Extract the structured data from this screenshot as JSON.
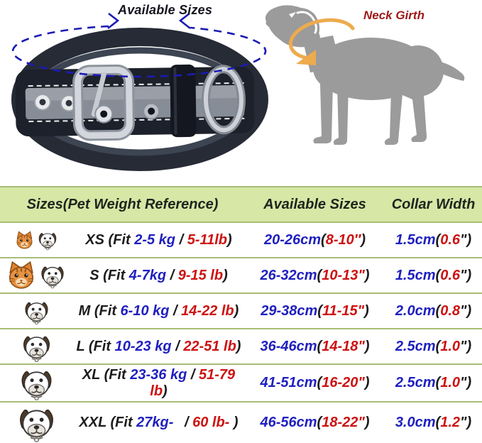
{
  "hero": {
    "available_sizes_label": "Available Sizes",
    "neck_girth_label": "Neck Girth",
    "colors": {
      "dashed_arrow": "#1b1bb4",
      "neck_arrow": "#edab4d",
      "neck_girth_text": "#9e1a1a",
      "dog_gray": "#9b9b9b"
    }
  },
  "table": {
    "headers": [
      "Sizes(Pet Weight Reference)",
      "Available Sizes",
      "Collar Width"
    ],
    "colors": {
      "header_bg": "#d6e7a6",
      "line": "#a9bc78",
      "blue": "#1f1fbf",
      "red": "#cd1111",
      "dark": "#1c1c1c"
    },
    "rows": [
      {
        "size_name": "XS",
        "icons": [
          {
            "type": "cat",
            "size": 27
          },
          {
            "type": "dog",
            "size": 30
          }
        ],
        "size_parts": [
          {
            "t": "XS (Fit ",
            "c": "dark"
          },
          {
            "t": "2-5 kg",
            "c": "blue"
          },
          {
            "t": " / ",
            "c": "dark"
          },
          {
            "t": "5-11lb",
            "c": "red"
          },
          {
            "t": ")",
            "c": "dark"
          }
        ],
        "avail_parts": [
          {
            "t": "20-26cm",
            "c": "blue"
          },
          {
            "t": "(",
            "c": "dark"
          },
          {
            "t": "8-10″",
            "c": "red"
          },
          {
            "t": ")",
            "c": "dark"
          }
        ],
        "width_parts": [
          {
            "t": "1.5cm",
            "c": "blue"
          },
          {
            "t": "(",
            "c": "dark"
          },
          {
            "t": "0.6",
            "c": "red"
          },
          {
            "t": "\")",
            "c": "dark"
          }
        ]
      },
      {
        "size_name": "S",
        "icons": [
          {
            "type": "cat",
            "size": 42
          },
          {
            "type": "dog",
            "size": 38
          }
        ],
        "size_parts": [
          {
            "t": "S (Fit ",
            "c": "dark"
          },
          {
            "t": "4-7kg",
            "c": "blue"
          },
          {
            "t": " / ",
            "c": "dark"
          },
          {
            "t": "9-15 lb",
            "c": "red"
          },
          {
            "t": ")",
            "c": "dark"
          }
        ],
        "avail_parts": [
          {
            "t": "26-32cm",
            "c": "blue"
          },
          {
            "t": "(",
            "c": "dark"
          },
          {
            "t": "10-13\"",
            "c": "red"
          },
          {
            "t": ")",
            "c": "dark"
          }
        ],
        "width_parts": [
          {
            "t": "1.5cm",
            "c": "blue"
          },
          {
            "t": "(",
            "c": "dark"
          },
          {
            "t": "0.6",
            "c": "red"
          },
          {
            "t": "\")",
            "c": "dark"
          }
        ]
      },
      {
        "size_name": "M",
        "icons": [
          {
            "type": "dog",
            "size": 39
          }
        ],
        "size_parts": [
          {
            "t": "M (Fit ",
            "c": "dark"
          },
          {
            "t": "6-10 kg",
            "c": "blue"
          },
          {
            "t": " / ",
            "c": "dark"
          },
          {
            "t": "14-22 lb",
            "c": "red"
          },
          {
            "t": ")",
            "c": "dark"
          }
        ],
        "avail_parts": [
          {
            "t": "29-38cm",
            "c": "blue"
          },
          {
            "t": "(",
            "c": "dark"
          },
          {
            "t": "11-15\"",
            "c": "red"
          },
          {
            "t": ")",
            "c": "dark"
          }
        ],
        "width_parts": [
          {
            "t": "2.0cm",
            "c": "blue"
          },
          {
            "t": "(",
            "c": "dark"
          },
          {
            "t": "0.8",
            "c": "red"
          },
          {
            "t": "\")",
            "c": "dark"
          }
        ]
      },
      {
        "size_name": "L",
        "icons": [
          {
            "type": "dog",
            "size": 45
          }
        ],
        "size_parts": [
          {
            "t": "L (Fit ",
            "c": "dark"
          },
          {
            "t": "10-23 kg",
            "c": "blue"
          },
          {
            "t": " / ",
            "c": "dark"
          },
          {
            "t": "22-51 lb",
            "c": "red"
          },
          {
            "t": ")",
            "c": "dark"
          }
        ],
        "avail_parts": [
          {
            "t": "36-46cm",
            "c": "blue"
          },
          {
            "t": "(",
            "c": "dark"
          },
          {
            "t": "14-18\"",
            "c": "red"
          },
          {
            "t": ")",
            "c": "dark"
          }
        ],
        "width_parts": [
          {
            "t": "2.5cm",
            "c": "blue"
          },
          {
            "t": "(",
            "c": "dark"
          },
          {
            "t": "1.0",
            "c": "red"
          },
          {
            "t": "\")",
            "c": "dark"
          }
        ]
      },
      {
        "size_name": "XL",
        "icons": [
          {
            "type": "dog",
            "size": 51
          }
        ],
        "size_parts": [
          {
            "t": "XL (Fit ",
            "c": "dark"
          },
          {
            "t": "23-36 kg",
            "c": "blue"
          },
          {
            "t": " / ",
            "c": "dark"
          },
          {
            "t": "51-79 lb",
            "c": "red"
          },
          {
            "t": ")",
            "c": "dark"
          }
        ],
        "avail_parts": [
          {
            "t": "41-51cm",
            "c": "blue"
          },
          {
            "t": "(",
            "c": "dark"
          },
          {
            "t": "16-20\"",
            "c": "red"
          },
          {
            "t": ")",
            "c": "dark"
          }
        ],
        "width_parts": [
          {
            "t": "2.5cm",
            "c": "blue"
          },
          {
            "t": "(",
            "c": "dark"
          },
          {
            "t": "1.0",
            "c": "red"
          },
          {
            "t": "\")",
            "c": "dark"
          }
        ]
      },
      {
        "size_name": "XXL",
        "icons": [
          {
            "type": "dog",
            "size": 57
          }
        ],
        "size_parts": [
          {
            "t": "XXL (Fit ",
            "c": "dark"
          },
          {
            "t": "27kg-",
            "c": "blue"
          },
          {
            "t": "  / ",
            "c": "dark"
          },
          {
            "t": "60 lb-",
            "c": "red"
          },
          {
            "t": " )",
            "c": "dark"
          }
        ],
        "avail_parts": [
          {
            "t": "46-56cm",
            "c": "blue"
          },
          {
            "t": "(",
            "c": "dark"
          },
          {
            "t": "18-22\"",
            "c": "red"
          },
          {
            "t": ")",
            "c": "dark"
          }
        ],
        "width_parts": [
          {
            "t": "3.0cm",
            "c": "blue"
          },
          {
            "t": "(",
            "c": "dark"
          },
          {
            "t": "1.2",
            "c": "red"
          },
          {
            "t": "\")",
            "c": "dark"
          }
        ]
      }
    ]
  }
}
